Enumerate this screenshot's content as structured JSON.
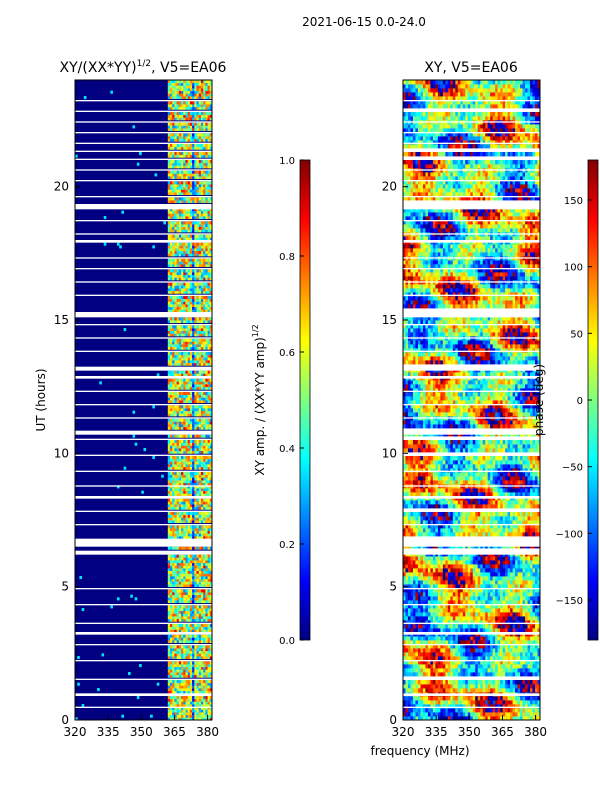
{
  "figure_title": "2021-06-15 0.0-24.0",
  "colors": {
    "jet": [
      "#000080",
      "#0000ff",
      "#0080ff",
      "#00ffff",
      "#80ff80",
      "#ffff00",
      "#ff8000",
      "#ff0000",
      "#800000"
    ],
    "gap": "#ffffff",
    "axis": "#000000"
  },
  "chart_data": [
    {
      "id": "amp",
      "type": "heatmap",
      "title": "XY/(XX*YY)",
      "title_sup": "1/2",
      "title_suffix": ", V5=EA06",
      "xlabel": "",
      "ylabel": "UT (hours)",
      "xlim": [
        320,
        382
      ],
      "ylim": [
        0,
        24
      ],
      "xticks": [
        320,
        335,
        350,
        365,
        380
      ],
      "yticks": [
        0,
        5,
        10,
        15,
        20
      ],
      "signal_channels_mhz": [
        363,
        366,
        368,
        371,
        375,
        378,
        380
      ],
      "colorbar": {
        "label": "XY amp. / (XX*YY amp)",
        "label_sup": "1/2",
        "range": [
          0.0,
          1.0
        ],
        "ticks": [
          0.0,
          0.2,
          0.4,
          0.6,
          0.8,
          1.0
        ]
      }
    },
    {
      "id": "phase",
      "type": "heatmap",
      "title": "XY, V5=EA06",
      "xlabel": "frequency (MHz)",
      "ylabel": "",
      "xlim": [
        320,
        382
      ],
      "ylim": [
        0,
        24
      ],
      "xticks": [
        320,
        335,
        350,
        365,
        380
      ],
      "yticks": [
        0,
        5,
        10,
        15,
        20
      ],
      "colorbar": {
        "label": "phase (deg)",
        "range": [
          -180,
          180
        ],
        "ticks": [
          -150,
          -100,
          -50,
          0,
          50,
          100,
          150
        ]
      }
    }
  ],
  "data_gaps_ut_hours": [
    [
      0.45,
      0.5
    ],
    [
      0.9,
      1.0
    ],
    [
      1.5,
      1.55
    ],
    [
      2.2,
      2.25
    ],
    [
      2.8,
      2.85
    ],
    [
      3.2,
      3.3
    ],
    [
      3.6,
      3.65
    ],
    [
      4.3,
      4.35
    ],
    [
      4.9,
      4.95
    ],
    [
      6.2,
      6.35
    ],
    [
      6.5,
      6.8
    ],
    [
      7.3,
      7.35
    ],
    [
      7.8,
      7.85
    ],
    [
      8.3,
      8.4
    ],
    [
      8.75,
      8.8
    ],
    [
      9.3,
      9.35
    ],
    [
      9.9,
      9.95
    ],
    [
      10.5,
      10.55
    ],
    [
      10.7,
      10.85
    ],
    [
      11.3,
      11.35
    ],
    [
      11.8,
      11.85
    ],
    [
      12.3,
      12.35
    ],
    [
      12.8,
      12.9
    ],
    [
      13.1,
      13.25
    ],
    [
      13.8,
      13.85
    ],
    [
      14.3,
      14.35
    ],
    [
      14.8,
      14.85
    ],
    [
      15.1,
      15.3
    ],
    [
      15.9,
      15.95
    ],
    [
      16.4,
      16.45
    ],
    [
      16.9,
      16.95
    ],
    [
      17.3,
      17.35
    ],
    [
      17.9,
      18.0
    ],
    [
      18.2,
      18.25
    ],
    [
      18.7,
      18.75
    ],
    [
      19.15,
      19.35
    ],
    [
      19.6,
      19.65
    ],
    [
      20.2,
      20.25
    ],
    [
      20.6,
      20.65
    ],
    [
      21.0,
      21.05
    ],
    [
      21.3,
      21.35
    ],
    [
      21.6,
      21.65
    ],
    [
      22.0,
      22.05
    ],
    [
      22.4,
      22.45
    ],
    [
      22.8,
      22.85
    ],
    [
      23.2,
      23.25
    ]
  ]
}
